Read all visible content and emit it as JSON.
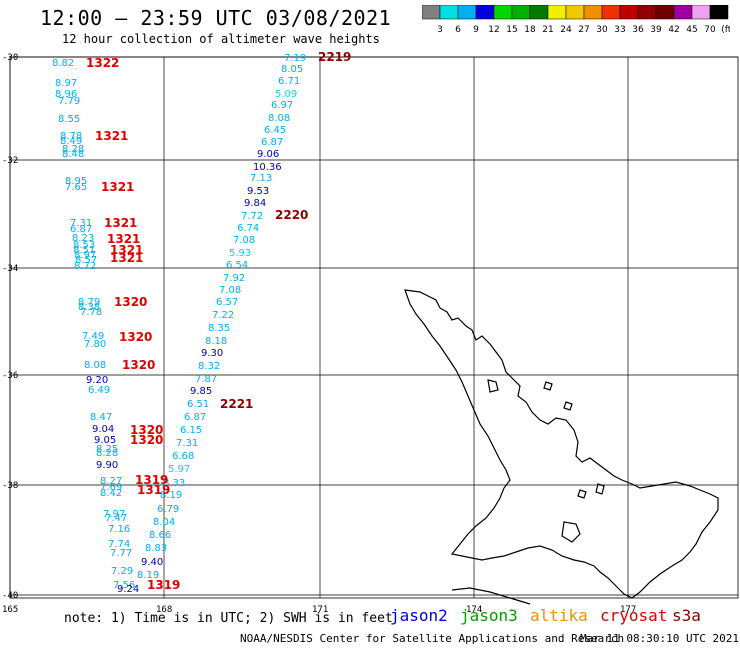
{
  "header": {
    "title": "12:00 – 23:59 UTC 03/08/2021",
    "subtitle": "12 hour collection of altimeter wave heights"
  },
  "colorbar": {
    "colors": [
      "#808080",
      "#00e0e0",
      "#00b0f0",
      "#0000e0",
      "#00d800",
      "#00b000",
      "#007a00",
      "#f0f000",
      "#f0c800",
      "#f09000",
      "#f03000",
      "#c00000",
      "#900000",
      "#700000",
      "#a000a0",
      "#f0a0f0",
      "#000000"
    ],
    "labels": [
      "3",
      "6",
      "9",
      "12",
      "15",
      "18",
      "21",
      "24",
      "27",
      "30",
      "33",
      "36",
      "39",
      "42",
      "45",
      "70",
      "(ft)"
    ]
  },
  "axes": {
    "lat_labels": [
      "-30",
      "-32",
      "-34",
      "-36",
      "-38",
      "-40"
    ],
    "lon_labels": [
      "165",
      "168",
      "171",
      "174",
      "177"
    ]
  },
  "passes": [
    {
      "id": "1322",
      "color": "#e00000"
    },
    {
      "id": "1321",
      "color": "#e00000"
    },
    {
      "id": "1320",
      "color": "#e00000"
    },
    {
      "id": "1319",
      "color": "#e00000"
    },
    {
      "id": "2219",
      "color": "#8b0000"
    },
    {
      "id": "2220",
      "color": "#8b0000"
    },
    {
      "id": "2221",
      "color": "#8b0000"
    }
  ],
  "track_left": [
    {
      "v": "8.82",
      "c": "#00b0f0"
    },
    {
      "v": "8.97",
      "c": "#00b0f0"
    },
    {
      "v": "8.96",
      "c": "#00b0f0"
    },
    {
      "v": "7.79",
      "c": "#00b0f0"
    },
    {
      "v": "8.55",
      "c": "#00b0f0"
    },
    {
      "v": "8.78",
      "c": "#00b0f0"
    },
    {
      "v": "8.49",
      "c": "#00b0f0"
    },
    {
      "v": "8.28",
      "c": "#00b0f0"
    },
    {
      "v": "8.48",
      "c": "#00b0f0"
    },
    {
      "v": "8.95",
      "c": "#00b0f0"
    },
    {
      "v": "7.65",
      "c": "#00b0f0"
    },
    {
      "v": "7.31",
      "c": "#00b0f0"
    },
    {
      "v": "6.87",
      "c": "#00b0f0"
    },
    {
      "v": "8.23",
      "c": "#00b0f0"
    },
    {
      "v": "8.53",
      "c": "#00b0f0"
    },
    {
      "v": "8.51",
      "c": "#00b0f0"
    },
    {
      "v": "8.97",
      "c": "#00b0f0"
    },
    {
      "v": "8.57",
      "c": "#00b0f0"
    },
    {
      "v": "8.72",
      "c": "#00b0f0"
    },
    {
      "v": "8.79",
      "c": "#00b0f0"
    },
    {
      "v": "8.38",
      "c": "#00b0f0"
    },
    {
      "v": "7.78",
      "c": "#00b0f0"
    },
    {
      "v": "7.49",
      "c": "#00b0f0"
    },
    {
      "v": "7.80",
      "c": "#00b0f0"
    },
    {
      "v": "8.08",
      "c": "#00b0f0"
    },
    {
      "v": "9.20",
      "c": "#0000c0"
    },
    {
      "v": "6.49",
      "c": "#00b0f0"
    },
    {
      "v": "8.47",
      "c": "#00b0f0"
    },
    {
      "v": "9.04",
      "c": "#0000c0"
    },
    {
      "v": "9.05",
      "c": "#0000c0"
    },
    {
      "v": "8.25",
      "c": "#00b0f0"
    },
    {
      "v": "8.28",
      "c": "#00b0f0"
    },
    {
      "v": "9.90",
      "c": "#0000c0"
    },
    {
      "v": "8.27",
      "c": "#00b0f0"
    },
    {
      "v": "7.69",
      "c": "#00b0f0"
    },
    {
      "v": "8.42",
      "c": "#00b0f0"
    },
    {
      "v": "7.97",
      "c": "#00b0f0"
    },
    {
      "v": "7.47",
      "c": "#00b0f0"
    },
    {
      "v": "7.16",
      "c": "#00b0f0"
    },
    {
      "v": "7.74",
      "c": "#00b0f0"
    },
    {
      "v": "7.77",
      "c": "#00b0f0"
    },
    {
      "v": "7.29",
      "c": "#00b0f0"
    },
    {
      "v": "7.56",
      "c": "#00b0f0"
    },
    {
      "v": "9.24",
      "c": "#0000c0"
    }
  ],
  "track_right": [
    {
      "v": "7.19",
      "c": "#00b0f0"
    },
    {
      "v": "8.05",
      "c": "#00b0f0"
    },
    {
      "v": "6.71",
      "c": "#00b0f0"
    },
    {
      "v": "5.09",
      "c": "#00d8f0"
    },
    {
      "v": "6.97",
      "c": "#00b0f0"
    },
    {
      "v": "8.08",
      "c": "#00b0f0"
    },
    {
      "v": "6.45",
      "c": "#00b0f0"
    },
    {
      "v": "6.87",
      "c": "#00b0f0"
    },
    {
      "v": "9.06",
      "c": "#0000c0"
    },
    {
      "v": "10.36",
      "c": "#0000c0"
    },
    {
      "v": "7.13",
      "c": "#00b0f0"
    },
    {
      "v": "9.53",
      "c": "#0000c0"
    },
    {
      "v": "9.84",
      "c": "#0000c0"
    },
    {
      "v": "7.72",
      "c": "#00b0f0"
    },
    {
      "v": "6.74",
      "c": "#00b0f0"
    },
    {
      "v": "7.08",
      "c": "#00b0f0"
    },
    {
      "v": "5.93",
      "c": "#00d8f0"
    },
    {
      "v": "6.54",
      "c": "#00b0f0"
    },
    {
      "v": "7.92",
      "c": "#00b0f0"
    },
    {
      "v": "7.08",
      "c": "#00b0f0"
    },
    {
      "v": "6.57",
      "c": "#00b0f0"
    },
    {
      "v": "7.22",
      "c": "#00b0f0"
    },
    {
      "v": "8.35",
      "c": "#00b0f0"
    },
    {
      "v": "8.18",
      "c": "#00b0f0"
    },
    {
      "v": "9.30",
      "c": "#0000c0"
    },
    {
      "v": "8.32",
      "c": "#00b0f0"
    },
    {
      "v": "7.87",
      "c": "#00b0f0"
    },
    {
      "v": "9.85",
      "c": "#0000c0"
    },
    {
      "v": "6.51",
      "c": "#00b0f0"
    },
    {
      "v": "6.87",
      "c": "#00b0f0"
    },
    {
      "v": "6.15",
      "c": "#00b0f0"
    },
    {
      "v": "7.31",
      "c": "#00b0f0"
    },
    {
      "v": "6.68",
      "c": "#00b0f0"
    },
    {
      "v": "5.97",
      "c": "#00d8f0"
    },
    {
      "v": "8.33",
      "c": "#00b0f0"
    },
    {
      "v": "8.19",
      "c": "#00b0f0"
    },
    {
      "v": "6.79",
      "c": "#00b0f0"
    },
    {
      "v": "8.04",
      "c": "#00b0f0"
    },
    {
      "v": "8.66",
      "c": "#00b0f0"
    },
    {
      "v": "8.83",
      "c": "#00b0f0"
    },
    {
      "v": "9.40",
      "c": "#0000c0"
    },
    {
      "v": "8.19",
      "c": "#00b0f0"
    }
  ],
  "footer": {
    "note": "note: 1) Time is in UTC; 2) SWH is in feet",
    "satellites": [
      {
        "name": "jason2",
        "color": "#0000e0"
      },
      {
        "name": "jason3",
        "color": "#00a000"
      },
      {
        "name": "altika",
        "color": "#f09000"
      },
      {
        "name": "cryosat",
        "color": "#e00000"
      },
      {
        "name": "s3a",
        "color": "#8b0000"
      }
    ],
    "credit": "NOAA/NESDIS Center for Satellite Applications and Research",
    "timestamp": "Mar 11 08:30:10 UTC 2021"
  }
}
